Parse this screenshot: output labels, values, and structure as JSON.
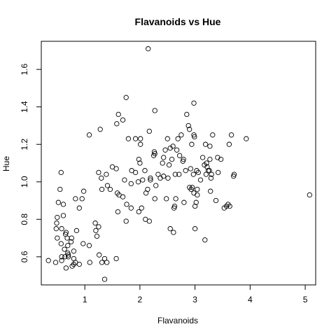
{
  "chart_data": {
    "type": "scatter",
    "title": "Flavanoids vs Hue",
    "xlabel": "Flavanoids",
    "ylabel": "Hue",
    "xlim": [
      0.21,
      5.19
    ],
    "ylim": [
      0.45,
      1.75
    ],
    "xticks": [
      1,
      2,
      3,
      4,
      5
    ],
    "yticks": [
      0.6,
      0.8,
      1.0,
      1.2,
      1.4,
      1.6
    ],
    "ytick_labels": [
      "0.6",
      "0.8",
      "1.0",
      "1.2",
      "1.4",
      "1.6"
    ],
    "grid": false,
    "legend": false,
    "marker": "open-circle",
    "point_color": "#000000",
    "points": [
      [
        0.34,
        0.58
      ],
      [
        0.47,
        0.57
      ],
      [
        0.48,
        0.75
      ],
      [
        0.49,
        0.78
      ],
      [
        0.5,
        0.7
      ],
      [
        0.5,
        0.81
      ],
      [
        0.52,
        0.89
      ],
      [
        0.55,
        0.96
      ],
      [
        0.57,
        1.05
      ],
      [
        0.57,
        0.67
      ],
      [
        0.58,
        0.6
      ],
      [
        0.58,
        0.75
      ],
      [
        0.58,
        0.58
      ],
      [
        0.61,
        0.88
      ],
      [
        0.61,
        0.82
      ],
      [
        0.63,
        0.64
      ],
      [
        0.64,
        0.6
      ],
      [
        0.65,
        0.72
      ],
      [
        0.66,
        0.54
      ],
      [
        0.66,
        0.73
      ],
      [
        0.68,
        0.7
      ],
      [
        0.69,
        0.62
      ],
      [
        0.69,
        0.66
      ],
      [
        0.7,
        0.61
      ],
      [
        0.7,
        0.6
      ],
      [
        0.75,
        0.68
      ],
      [
        0.76,
        0.7
      ],
      [
        0.77,
        0.55
      ],
      [
        0.8,
        0.63
      ],
      [
        0.8,
        0.59
      ],
      [
        0.8,
        0.56
      ],
      [
        0.83,
        0.57
      ],
      [
        0.83,
        0.91
      ],
      [
        0.85,
        0.74
      ],
      [
        0.9,
        0.56
      ],
      [
        0.9,
        0.86
      ],
      [
        0.95,
        0.91
      ],
      [
        0.97,
        0.67
      ],
      [
        0.98,
        0.95
      ],
      [
        1.08,
        1.25
      ],
      [
        1.08,
        0.66
      ],
      [
        1.09,
        0.57
      ],
      [
        1.19,
        0.78
      ],
      [
        1.2,
        0.74
      ],
      [
        1.22,
        0.71
      ],
      [
        1.25,
        0.76
      ],
      [
        1.25,
        1.05
      ],
      [
        1.26,
        0.61
      ],
      [
        1.28,
        1.28
      ],
      [
        1.3,
        1.02
      ],
      [
        1.31,
        0.96
      ],
      [
        1.31,
        0.57
      ],
      [
        1.36,
        0.48
      ],
      [
        1.36,
        0.59
      ],
      [
        1.39,
        1.04
      ],
      [
        1.4,
        0.57
      ],
      [
        1.41,
        0.98
      ],
      [
        1.46,
        0.96
      ],
      [
        1.5,
        1.08
      ],
      [
        1.57,
        0.59
      ],
      [
        1.57,
        1.07
      ],
      [
        1.58,
        1.31
      ],
      [
        1.59,
        0.94
      ],
      [
        1.6,
        0.84
      ],
      [
        1.61,
        1.36
      ],
      [
        1.62,
        0.93
      ],
      [
        1.69,
        1.33
      ],
      [
        1.69,
        0.92
      ],
      [
        1.72,
        1.01
      ],
      [
        1.75,
        1.45
      ],
      [
        1.75,
        0.79
      ],
      [
        1.76,
        0.88
      ],
      [
        1.79,
        1.23
      ],
      [
        1.84,
        0.86
      ],
      [
        1.84,
        0.99
      ],
      [
        1.85,
        1.06
      ],
      [
        1.92,
        1.05
      ],
      [
        1.92,
        1.23
      ],
      [
        1.97,
        1.0
      ],
      [
        1.98,
        0.84
      ],
      [
        1.98,
        1.12
      ],
      [
        2.0,
        1.1
      ],
      [
        2.01,
        1.23
      ],
      [
        2.01,
        1.2
      ],
      [
        2.03,
        0.86
      ],
      [
        2.05,
        1.01
      ],
      [
        2.09,
        1.06
      ],
      [
        2.1,
        0.8
      ],
      [
        2.11,
        0.94
      ],
      [
        2.14,
        0.96
      ],
      [
        2.15,
        1.71
      ],
      [
        2.17,
        1.27
      ],
      [
        2.17,
        0.79
      ],
      [
        2.19,
        1.01
      ],
      [
        2.19,
        1.02
      ],
      [
        2.25,
        1.14
      ],
      [
        2.26,
        1.16
      ],
      [
        2.27,
        1.15
      ],
      [
        2.27,
        1.38
      ],
      [
        2.27,
        0.91
      ],
      [
        2.29,
        0.98
      ],
      [
        2.33,
        1.04
      ],
      [
        2.37,
        1.02
      ],
      [
        2.41,
        1.1
      ],
      [
        2.43,
        1.03
      ],
      [
        2.43,
        1.13
      ],
      [
        2.46,
        1.17
      ],
      [
        2.48,
        0.91
      ],
      [
        2.5,
        1.23
      ],
      [
        2.51,
        1.02
      ],
      [
        2.53,
        1.09
      ],
      [
        2.55,
        0.75
      ],
      [
        2.55,
        1.18
      ],
      [
        2.58,
        1.12
      ],
      [
        2.6,
        1.19
      ],
      [
        2.61,
        0.73
      ],
      [
        2.62,
        0.86
      ],
      [
        2.63,
        0.87
      ],
      [
        2.64,
        1.04
      ],
      [
        2.65,
        0.91
      ],
      [
        2.67,
        1.17
      ],
      [
        2.69,
        1.23
      ],
      [
        2.71,
        1.04
      ],
      [
        2.72,
        1.14
      ],
      [
        2.75,
        1.25
      ],
      [
        2.78,
        1.11
      ],
      [
        2.79,
        1.12
      ],
      [
        2.8,
        0.89
      ],
      [
        2.83,
        1.06
      ],
      [
        2.85,
        1.36
      ],
      [
        2.88,
        1.3
      ],
      [
        2.9,
        1.28
      ],
      [
        2.9,
        0.97
      ],
      [
        2.92,
        1.07
      ],
      [
        2.93,
        0.96
      ],
      [
        2.94,
        1.2
      ],
      [
        2.95,
        0.97
      ],
      [
        2.97,
        1.04
      ],
      [
        2.98,
        1.25
      ],
      [
        2.98,
        0.94
      ],
      [
        2.98,
        1.42
      ],
      [
        2.99,
        1.24
      ],
      [
        3.0,
        0.87
      ],
      [
        3.0,
        0.75
      ],
      [
        3.02,
        0.89
      ],
      [
        3.03,
        1.06
      ],
      [
        3.04,
        0.93
      ],
      [
        3.04,
        0.96
      ],
      [
        3.06,
        1.05
      ],
      [
        3.1,
        1.01
      ],
      [
        3.14,
        1.13
      ],
      [
        3.17,
        1.09
      ],
      [
        3.18,
        0.69
      ],
      [
        3.19,
        1.2
      ],
      [
        3.2,
        1.04
      ],
      [
        3.21,
        1.1
      ],
      [
        3.22,
        1.08
      ],
      [
        3.24,
        1.06
      ],
      [
        3.26,
        1.06
      ],
      [
        3.27,
        1.12
      ],
      [
        3.27,
        1.19
      ],
      [
        3.28,
        0.95
      ],
      [
        3.29,
        1.02
      ],
      [
        3.3,
        1.04
      ],
      [
        3.32,
        1.25
      ],
      [
        3.38,
        0.9
      ],
      [
        3.41,
        1.13
      ],
      [
        3.42,
        1.05
      ],
      [
        3.47,
        1.12
      ],
      [
        3.53,
        0.86
      ],
      [
        3.57,
        0.87
      ],
      [
        3.6,
        0.88
      ],
      [
        3.62,
        1.2
      ],
      [
        3.63,
        0.87
      ],
      [
        3.66,
        1.25
      ],
      [
        3.7,
        1.03
      ],
      [
        3.71,
        1.04
      ],
      [
        3.93,
        1.23
      ],
      [
        5.08,
        0.93
      ]
    ]
  }
}
